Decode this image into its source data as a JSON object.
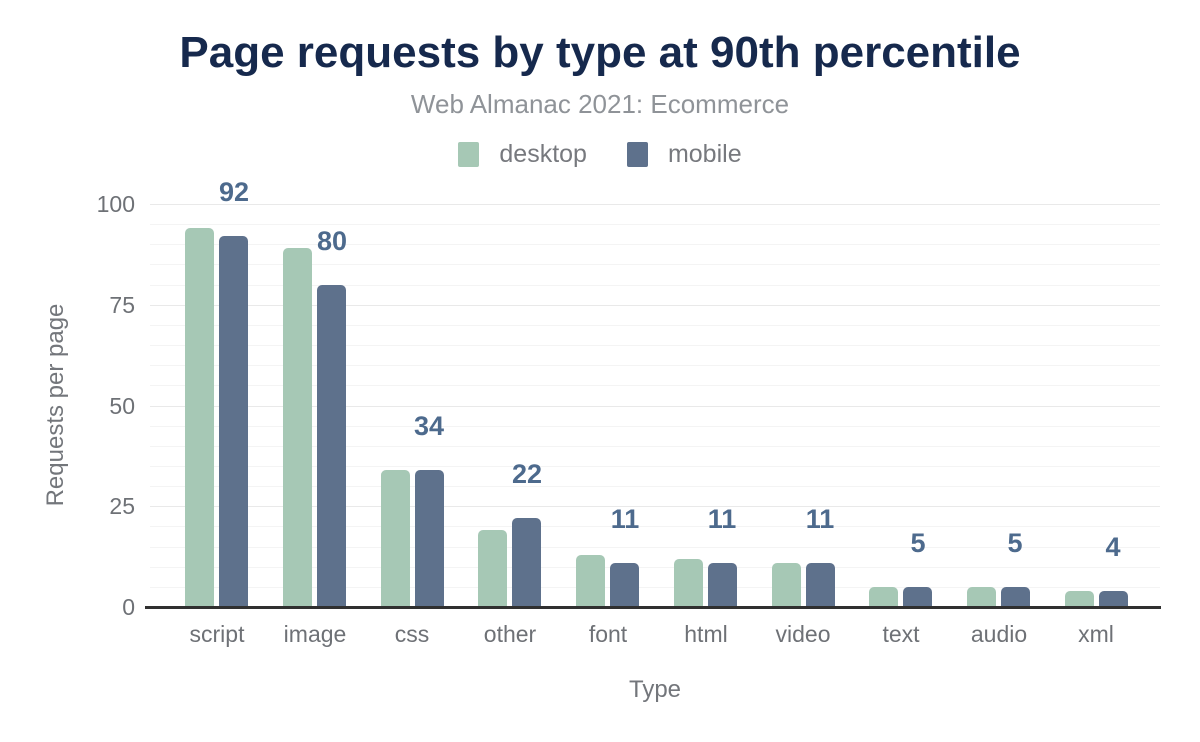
{
  "chart_data": {
    "type": "bar",
    "title": "Page requests by type at 90th percentile",
    "subtitle": "Web Almanac 2021: Ecommerce",
    "xlabel": "Type",
    "ylabel": "Requests per page",
    "categories": [
      "script",
      "image",
      "css",
      "other",
      "font",
      "html",
      "video",
      "text",
      "audio",
      "xml"
    ],
    "series": [
      {
        "name": "desktop",
        "color": "#a6c8b5",
        "values": [
          94,
          89,
          34,
          19,
          13,
          12,
          11,
          5,
          5,
          4
        ]
      },
      {
        "name": "mobile",
        "color": "#5e718c",
        "values": [
          92,
          80,
          34,
          22,
          11,
          11,
          11,
          5,
          5,
          4
        ]
      }
    ],
    "bar_labels": [
      "92",
      "80",
      "34",
      "22",
      "11",
      "11",
      "11",
      "5",
      "5",
      "4"
    ],
    "bar_labels_source_series": "mobile",
    "yticks": [
      "0",
      "25",
      "50",
      "75",
      "100"
    ],
    "ylim": [
      0,
      100
    ],
    "grid": {
      "horizontal": true,
      "minor_step": 5,
      "major_step": 25
    },
    "legend_position": "top",
    "colors": {
      "title": "#16294d",
      "subtitle": "#8f9398",
      "axis_text": "#6e7176",
      "value_label": "#4d6a8d",
      "baseline": "#303030",
      "major_grid": "#e9e9e9",
      "minor_grid": "#f4f4f4",
      "background": "#ffffff"
    }
  }
}
